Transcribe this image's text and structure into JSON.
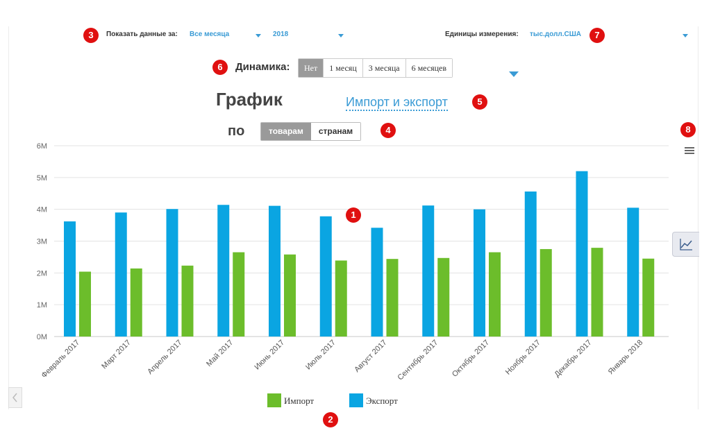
{
  "filters": {
    "period_label": "Показать данные за:",
    "period_value": "Все месяца",
    "year_value": "2018",
    "units_label": "Единицы измерения:",
    "units_value": "тыс.долл.США"
  },
  "dynamics": {
    "label": "Динамика:",
    "options": [
      "Нет",
      "1 месяц",
      "3 месяца",
      "6 месяцев"
    ],
    "active_index": 0
  },
  "heading": {
    "title": "График",
    "by": "по",
    "mode": "Импорт и экспорт",
    "group_options": [
      "товарам",
      "странам"
    ],
    "group_active_index": 0
  },
  "markers": [
    "1",
    "2",
    "3",
    "4",
    "5",
    "6",
    "7",
    "8"
  ],
  "icons": {
    "menu": "hamburger-menu-icon",
    "chart_toggle": "line-chart-icon",
    "prev": "chevron-left-icon",
    "dropdown": "caret-down-icon"
  },
  "colors": {
    "import": "#6cbd2b",
    "export": "#0aa5e2",
    "link": "#3a9bd5",
    "marker": "#e01010"
  },
  "chart_data": {
    "type": "bar",
    "categories": [
      "Февраль 2017",
      "Март 2017",
      "Апрель 2017",
      "Май 2017",
      "Июнь 2017",
      "Июль 2017",
      "Август 2017",
      "Сентябрь 2017",
      "Октябрь 2017",
      "Ноябрь 2017",
      "Декабрь 2017",
      "Январь 2018"
    ],
    "series": [
      {
        "name": "Экспорт",
        "values": [
          3.62,
          3.9,
          4.01,
          4.14,
          4.11,
          3.78,
          3.42,
          4.12,
          4.0,
          4.56,
          5.2,
          4.05
        ]
      },
      {
        "name": "Импорт",
        "values": [
          2.04,
          2.14,
          2.23,
          2.65,
          2.58,
          2.39,
          2.44,
          2.47,
          2.65,
          2.75,
          2.79,
          2.45
        ]
      }
    ],
    "legend": [
      "Импорт",
      "Экспорт"
    ],
    "legend_position": "bottom",
    "yticks": [
      "0M",
      "1M",
      "2M",
      "3M",
      "4M",
      "5M",
      "6M"
    ],
    "ylim": [
      0,
      6
    ],
    "grid": true
  }
}
